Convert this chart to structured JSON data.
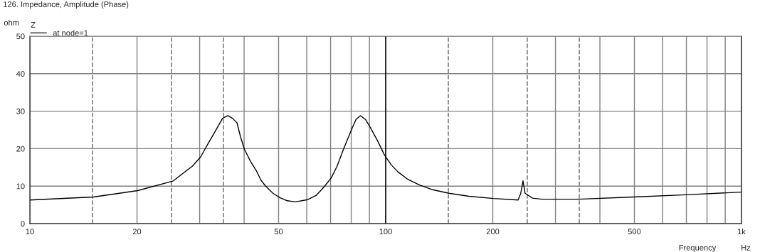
{
  "chart_data": {
    "type": "line",
    "title": "126. Impedance, Amplitude (Phase)",
    "xlabel": "Frequency",
    "ylabel": "ohm",
    "legend_title": "Z",
    "annotations": [
      "Hz"
    ],
    "series": [
      {
        "name": "at node=1",
        "color": "#000000",
        "x": [
          10,
          15.1,
          20.1,
          25.3,
          28.6,
          30.2,
          31.8,
          32.8,
          34.8,
          36.0,
          37.1,
          38.2,
          39.1,
          40.1,
          41.7,
          43.3,
          44.6,
          46.0,
          48.2,
          50.5,
          52.9,
          55.7,
          60.4,
          63.7,
          67.0,
          70.3,
          73.0,
          76.2,
          80.6,
          82.5,
          84.9,
          87.7,
          90.6,
          95,
          99.2,
          103.8,
          108.3,
          115.4,
          124.5,
          134.8,
          150.6,
          171.5,
          201,
          235.5,
          239.7,
          243.2,
          246.4,
          258.7,
          274.8,
          348.6,
          497.7,
          699,
          1000
        ],
        "values": [
          6.3,
          7.1,
          8.8,
          11.4,
          15.3,
          17.8,
          21.6,
          23.8,
          28.1,
          28.8,
          28.1,
          26.9,
          23.1,
          19.8,
          16.6,
          14.1,
          11.6,
          10.0,
          8.1,
          6.9,
          6.1,
          5.8,
          6.4,
          7.5,
          9.7,
          12.2,
          15.3,
          20.0,
          25.6,
          27.8,
          28.8,
          27.8,
          25.6,
          22.0,
          18.3,
          15.6,
          13.8,
          11.8,
          10.3,
          9.1,
          8.1,
          7.3,
          6.7,
          6.3,
          8.1,
          11.4,
          8.1,
          6.8,
          6.5,
          6.5,
          7.1,
          7.7,
          8.4
        ]
      }
    ],
    "log": "x",
    "xlim": [
      10,
      1000
    ],
    "ylim": [
      0,
      50
    ],
    "xticks": [
      10,
      20,
      {
        "value": 30,
        "label": null
      },
      {
        "value": 40,
        "label": null
      },
      50,
      {
        "value": 60,
        "label": null
      },
      {
        "value": 70,
        "label": null
      },
      {
        "value": 80,
        "label": null
      },
      {
        "value": 90,
        "label": null
      },
      100,
      200,
      {
        "value": 300,
        "label": null
      },
      {
        "value": 400,
        "label": null
      },
      500,
      {
        "value": 600,
        "label": null
      },
      {
        "value": 700,
        "label": null
      },
      {
        "value": 800,
        "label": null
      },
      {
        "value": 900,
        "label": null
      },
      {
        "value": 1000,
        "label": "1k"
      }
    ],
    "yticks": [
      0,
      10,
      20,
      30,
      40,
      50
    ],
    "ref_lines": [
      {
        "axis": "x",
        "value": 15,
        "color": "#808080",
        "line_style": "dashed"
      },
      {
        "axis": "x",
        "value": 25,
        "color": "#808080",
        "line_style": "dashed"
      },
      {
        "axis": "x",
        "value": 35,
        "color": "#808080",
        "line_style": "dashed"
      },
      {
        "axis": "x",
        "value": 150,
        "color": "#808080",
        "line_style": "dashed"
      },
      {
        "axis": "x",
        "value": 250,
        "color": "#808080",
        "line_style": "dashed"
      },
      {
        "axis": "x",
        "value": 350,
        "color": "#808080",
        "line_style": "dashed"
      },
      {
        "axis": "x",
        "value": 100,
        "color": "#000000",
        "line_style": "solid"
      }
    ],
    "grid": true,
    "legend": "top left",
    "line_style": "solid",
    "marker": "none"
  }
}
